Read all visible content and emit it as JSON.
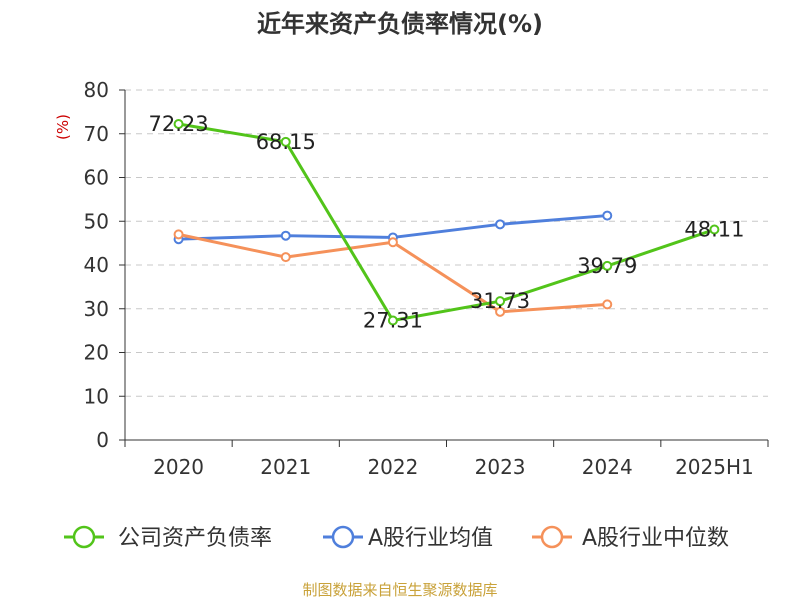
{
  "chart_data": {
    "type": "line",
    "title": "近年来资产负债率情况(%)",
    "ylabel": "(%)",
    "xlabel": "",
    "ylim": [
      0,
      80
    ],
    "yticks": [
      0,
      10,
      20,
      30,
      40,
      50,
      60,
      70,
      80
    ],
    "categories": [
      "2020",
      "2021",
      "2022",
      "2023",
      "2024",
      "2025H1"
    ],
    "grid": true,
    "legend_position": "bottom",
    "series": [
      {
        "name": "公司资产负债率",
        "color": "#52c41a",
        "values": [
          72.23,
          68.15,
          27.31,
          31.73,
          39.79,
          48.11
        ],
        "labels": [
          "72.23",
          "68.15",
          "27.31",
          "31.73",
          "39.79",
          "48.11"
        ]
      },
      {
        "name": "A股行业均值",
        "color": "#4f7fdc",
        "values": [
          45.9,
          46.7,
          46.3,
          49.3,
          51.3,
          null
        ]
      },
      {
        "name": "A股行业中位数",
        "color": "#f5915a",
        "values": [
          47.0,
          41.8,
          45.2,
          29.3,
          31.0,
          null
        ]
      }
    ],
    "source": "制图数据来自恒生聚源数据库",
    "source_color": "#c9a23a"
  }
}
